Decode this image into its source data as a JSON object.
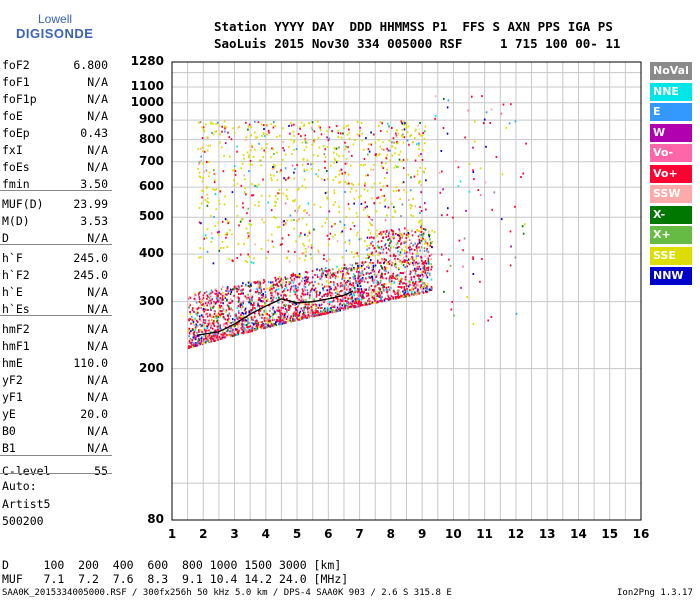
{
  "logo": {
    "line1": "Lowell",
    "line2": "DIGISONDE"
  },
  "header": {
    "line1": "Station YYYY DAY  DDD HHMMSS P1  FFS S AXN PPS IGA PS",
    "line2": "SaoLuis 2015 Nov30 334 005000 RSF     1 715 100 00- 11"
  },
  "params": [
    {
      "key": "foF2",
      "value": "6.800"
    },
    {
      "key": "foF1",
      "value": "N/A"
    },
    {
      "key": "foF1p",
      "value": "N/A"
    },
    {
      "key": "foE",
      "value": "N/A"
    },
    {
      "key": "foEp",
      "value": "0.43"
    },
    {
      "key": "fxI",
      "value": "N/A"
    },
    {
      "key": "foEs",
      "value": "N/A"
    },
    {
      "key": "fmin",
      "value": "3.50"
    },
    {
      "key": "MUF(D)",
      "value": "23.99"
    },
    {
      "key": "M(D)",
      "value": "3.53"
    },
    {
      "key": "D",
      "value": "N/A"
    },
    {
      "key": "h`F",
      "value": "245.0"
    },
    {
      "key": "h`F2",
      "value": "245.0"
    },
    {
      "key": "h`E",
      "value": "N/A"
    },
    {
      "key": "h`Es",
      "value": "N/A"
    },
    {
      "key": "hmF2",
      "value": "N/A"
    },
    {
      "key": "hmF1",
      "value": "N/A"
    },
    {
      "key": "hmE",
      "value": "110.0"
    },
    {
      "key": "yF2",
      "value": "N/A"
    },
    {
      "key": "yF1",
      "value": "N/A"
    },
    {
      "key": "yE",
      "value": "20.0"
    },
    {
      "key": "B0",
      "value": "N/A"
    },
    {
      "key": "B1",
      "value": "N/A"
    },
    {
      "key": "C-level",
      "value": "55"
    }
  ],
  "auto": {
    "line1": "Auto:",
    "line2": "Artist5",
    "line3": "500200"
  },
  "legend": [
    {
      "label": "NoVal",
      "color": "#8a8a8a"
    },
    {
      "label": "NNE",
      "color": "#00e6e6"
    },
    {
      "label": "E",
      "color": "#3399ff"
    },
    {
      "label": "W",
      "color": "#b000b0"
    },
    {
      "label": "Vo-",
      "color": "#ff66aa"
    },
    {
      "label": "Vo+",
      "color": "#ff0033"
    },
    {
      "label": "SSW",
      "color": "#ffaaaa"
    },
    {
      "label": "X-",
      "color": "#007700"
    },
    {
      "label": "X+",
      "color": "#66bb44"
    },
    {
      "label": "SSE",
      "color": "#dddd00"
    },
    {
      "label": "NNW",
      "color": "#0000cc"
    }
  ],
  "chart_data": {
    "type": "scatter",
    "title": "",
    "xlabel": "",
    "ylabel": "",
    "x_ticks": [
      "1",
      "2",
      "3",
      "4",
      "5",
      "6",
      "7",
      "8",
      "9",
      "10",
      "11",
      "12",
      "13",
      "14",
      "15",
      "16"
    ],
    "y_ticks": [
      "80",
      "200",
      "300",
      "400",
      "500",
      "600",
      "700",
      "800",
      "900",
      "1000",
      "1100",
      "1280"
    ],
    "xlim": [
      1,
      16
    ],
    "ylim": [
      80,
      1280
    ],
    "y_scale": "log",
    "grid": true,
    "trace_line": {
      "x": [
        1.8,
        2.5,
        3.0,
        3.5,
        4.0,
        4.5,
        5.0,
        5.5,
        6.0,
        6.5,
        6.8
      ],
      "y": [
        245,
        250,
        262,
        278,
        292,
        305,
        298,
        300,
        305,
        312,
        320
      ]
    }
  },
  "bottom": {
    "d_row": "D     100  200  400  600  800 1000 1500 3000 [km]",
    "muf_row": "MUF   7.1  7.2  7.6  8.3  9.1 10.4 14.2 24.0 [MHz]"
  },
  "footer": {
    "left": "SAA0K_2015334005000.RSF / 300fx256h 50 kHz 5.0 km / DPS-4 SAA0K 903 / 2.6 S 315.8 E",
    "right": "Ion2Png 1.3.17"
  }
}
